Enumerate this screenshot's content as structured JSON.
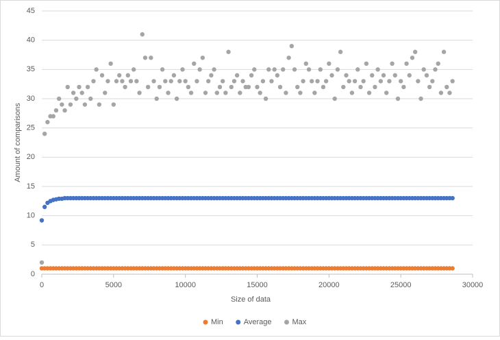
{
  "chart_data": {
    "type": "scatter",
    "xlabel": "Size of data",
    "ylabel": "Amount of comparisons",
    "xlim": [
      0,
      30000
    ],
    "xticks": [
      0,
      5000,
      10000,
      15000,
      20000,
      25000,
      30000
    ],
    "ylim": [
      0,
      45
    ],
    "yticks": [
      0,
      5,
      10,
      15,
      20,
      25,
      30,
      35,
      40,
      45
    ],
    "grid": true,
    "legend": "bottom",
    "x": [
      0,
      200,
      400,
      600,
      800,
      1000,
      1200,
      1400,
      1600,
      1800,
      2000,
      2200,
      2400,
      2600,
      2800,
      3000,
      3200,
      3400,
      3600,
      3800,
      4000,
      4200,
      4400,
      4600,
      4800,
      5000,
      5200,
      5400,
      5600,
      5800,
      6000,
      6200,
      6400,
      6600,
      6800,
      7000,
      7200,
      7400,
      7600,
      7800,
      8000,
      8200,
      8400,
      8600,
      8800,
      9000,
      9200,
      9400,
      9600,
      9800,
      10000,
      10200,
      10400,
      10600,
      10800,
      11000,
      11200,
      11400,
      11600,
      11800,
      12000,
      12200,
      12400,
      12600,
      12800,
      13000,
      13200,
      13400,
      13600,
      13800,
      14000,
      14200,
      14400,
      14600,
      14800,
      15000,
      15200,
      15400,
      15600,
      15800,
      16000,
      16200,
      16400,
      16600,
      16800,
      17000,
      17200,
      17400,
      17600,
      17800,
      18000,
      18200,
      18400,
      18600,
      18800,
      19000,
      19200,
      19400,
      19600,
      19800,
      20000,
      20200,
      20400,
      20600,
      20800,
      21000,
      21200,
      21400,
      21600,
      21800,
      22000,
      22200,
      22400,
      22600,
      22800,
      23000,
      23200,
      23400,
      23600,
      23800,
      24000,
      24200,
      24400,
      24600,
      24800,
      25000,
      25200,
      25400,
      25600,
      25800,
      26000,
      26200,
      26400,
      26600,
      26800,
      27000,
      27200,
      27400,
      27600,
      27800,
      28000,
      28200,
      28400,
      28600
    ],
    "series": [
      {
        "name": "Min",
        "color": "#ed7d31",
        "values": [
          1,
          1,
          1,
          1,
          1,
          1,
          1,
          1,
          1,
          1,
          1,
          1,
          1,
          1,
          1,
          1,
          1,
          1,
          1,
          1,
          1,
          1,
          1,
          1,
          1,
          1,
          1,
          1,
          1,
          1,
          1,
          1,
          1,
          1,
          1,
          1,
          1,
          1,
          1,
          1,
          1,
          1,
          1,
          1,
          1,
          1,
          1,
          1,
          1,
          1,
          1,
          1,
          1,
          1,
          1,
          1,
          1,
          1,
          1,
          1,
          1,
          1,
          1,
          1,
          1,
          1,
          1,
          1,
          1,
          1,
          1,
          1,
          1,
          1,
          1,
          1,
          1,
          1,
          1,
          1,
          1,
          1,
          1,
          1,
          1,
          1,
          1,
          1,
          1,
          1,
          1,
          1,
          1,
          1,
          1,
          1,
          1,
          1,
          1,
          1,
          1,
          1,
          1,
          1,
          1,
          1,
          1,
          1,
          1,
          1,
          1,
          1,
          1,
          1,
          1,
          1,
          1,
          1,
          1,
          1,
          1,
          1,
          1,
          1,
          1,
          1,
          1,
          1,
          1,
          1,
          1,
          1,
          1,
          1,
          1,
          1,
          1,
          1,
          1,
          1,
          1,
          1,
          1,
          1
        ]
      },
      {
        "name": "Average",
        "color": "#4472c4",
        "values": [
          9.2,
          11.5,
          12.2,
          12.5,
          12.7,
          12.8,
          12.9,
          12.9,
          13,
          13,
          13,
          13,
          13,
          13,
          13,
          13,
          13,
          13,
          13,
          13,
          13,
          13,
          13,
          13,
          13,
          13,
          13,
          13,
          13,
          13,
          13,
          13,
          13,
          13,
          13,
          13,
          13,
          13,
          13,
          13,
          13,
          13,
          13,
          13,
          13,
          13,
          13,
          13,
          13,
          13,
          13,
          13,
          13,
          13,
          13,
          13,
          13,
          13,
          13,
          13,
          13,
          13,
          13,
          13,
          13,
          13,
          13,
          13,
          13,
          13,
          13,
          13,
          13,
          13,
          13,
          13,
          13,
          13,
          13,
          13,
          13,
          13,
          13,
          13,
          13,
          13,
          13,
          13,
          13,
          13,
          13,
          13,
          13,
          13,
          13,
          13,
          13,
          13,
          13,
          13,
          13,
          13,
          13,
          13,
          13,
          13,
          13,
          13,
          13,
          13,
          13,
          13,
          13,
          13,
          13,
          13,
          13,
          13,
          13,
          13,
          13,
          13,
          13,
          13,
          13,
          13,
          13,
          13,
          13,
          13,
          13,
          13,
          13,
          13,
          13,
          13,
          13,
          13,
          13,
          13,
          13,
          13,
          13,
          13
        ]
      },
      {
        "name": "Max",
        "color": "#a5a5a5",
        "values": [
          2,
          24,
          26,
          27,
          27,
          28,
          30,
          29,
          28,
          32,
          29,
          31,
          30,
          32,
          31,
          29,
          32,
          30,
          33,
          35,
          29,
          34,
          31,
          33,
          36,
          29,
          33,
          34,
          33,
          32,
          34,
          33,
          35,
          33,
          31,
          41,
          37,
          32,
          37,
          33,
          30,
          32,
          35,
          33,
          31,
          33,
          34,
          30,
          33,
          35,
          33,
          32,
          31,
          36,
          33,
          35,
          37,
          31,
          33,
          34,
          35,
          31,
          32,
          33,
          31,
          38,
          32,
          33,
          34,
          31,
          33,
          32,
          32,
          34,
          35,
          32,
          31,
          33,
          30,
          35,
          33,
          35,
          34,
          32,
          35,
          31,
          37,
          39,
          35,
          32,
          31,
          33,
          36,
          35,
          33,
          31,
          33,
          35,
          32,
          33,
          36,
          34,
          30,
          35,
          38,
          32,
          34,
          33,
          31,
          33,
          35,
          32,
          33,
          36,
          31,
          34,
          32,
          35,
          33,
          34,
          31,
          33,
          36,
          34,
          30,
          33,
          32,
          36,
          34,
          37,
          38,
          33,
          30,
          35,
          34,
          32,
          33,
          35,
          36,
          31,
          38,
          32,
          31,
          33
        ]
      }
    ]
  }
}
